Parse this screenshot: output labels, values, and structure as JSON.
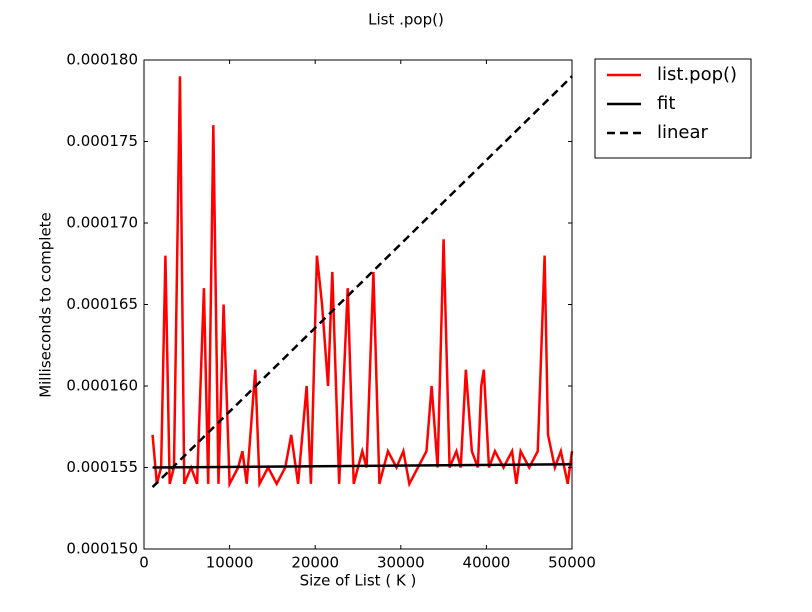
{
  "chart_data": {
    "type": "line",
    "title": "List .pop()",
    "xlabel": "Size of List ( K )",
    "ylabel": "Milliseconds to complete",
    "xlim": [
      0,
      50000
    ],
    "ylim": [
      0.00015,
      0.00018
    ],
    "xticks": [
      0,
      10000,
      20000,
      30000,
      40000,
      50000
    ],
    "yticks": [
      {
        "value": 0.00015,
        "label": "0.000150"
      },
      {
        "value": 0.000155,
        "label": "0.000155"
      },
      {
        "value": 0.00016,
        "label": "0.000160"
      },
      {
        "value": 0.000165,
        "label": "0.000165"
      },
      {
        "value": 0.00017,
        "label": "0.000170"
      },
      {
        "value": 0.000175,
        "label": "0.000175"
      },
      {
        "value": 0.00018,
        "label": "0.000180"
      }
    ],
    "grid": false,
    "legend": "outside upper right",
    "series": [
      {
        "name": "list.pop()",
        "color": "#ff0000",
        "linestyle": "solid",
        "x": [
          1000,
          1500,
          2000,
          2500,
          3000,
          3500,
          4200,
          4700,
          5500,
          6200,
          7000,
          7500,
          8100,
          8700,
          9300,
          10000,
          11000,
          11500,
          12000,
          13000,
          13500,
          14500,
          15500,
          16500,
          17200,
          18000,
          19000,
          19500,
          20200,
          20800,
          21500,
          22000,
          22800,
          23800,
          24500,
          25500,
          26000,
          26800,
          27500,
          28500,
          29500,
          30300,
          31000,
          32000,
          33000,
          33600,
          34300,
          35000,
          35700,
          36500,
          37000,
          37600,
          38300,
          39000,
          39400,
          39700,
          40300,
          41000,
          42000,
          43000,
          43500,
          44000,
          45000,
          46000,
          46800,
          47200,
          48000,
          48700,
          49500,
          50000
        ],
        "values": [
          0.000157,
          0.000154,
          0.000155,
          0.000168,
          0.000154,
          0.000155,
          0.000179,
          0.000154,
          0.000155,
          0.000154,
          0.000166,
          0.000154,
          0.000176,
          0.000154,
          0.000165,
          0.000154,
          0.000155,
          0.000156,
          0.000154,
          0.000161,
          0.000154,
          0.000155,
          0.000154,
          0.000155,
          0.000157,
          0.000154,
          0.00016,
          0.000154,
          0.000168,
          0.000165,
          0.00016,
          0.000167,
          0.000154,
          0.000166,
          0.000154,
          0.000156,
          0.000155,
          0.000167,
          0.000154,
          0.000156,
          0.000155,
          0.000156,
          0.000154,
          0.000155,
          0.000156,
          0.00016,
          0.000155,
          0.000169,
          0.000155,
          0.000156,
          0.000155,
          0.000161,
          0.000156,
          0.000155,
          0.00016,
          0.000161,
          0.000155,
          0.000156,
          0.000155,
          0.000156,
          0.000154,
          0.000156,
          0.000155,
          0.000156,
          0.000168,
          0.000157,
          0.000155,
          0.000156,
          0.000154,
          0.000156
        ]
      },
      {
        "name": "fit",
        "color": "#000000",
        "linestyle": "solid",
        "x": [
          1000,
          50000
        ],
        "values": [
          0.000155,
          0.0001552
        ]
      },
      {
        "name": "linear",
        "color": "#000000",
        "linestyle": "dashed",
        "x": [
          1000,
          50000
        ],
        "values": [
          0.0001538,
          0.000179
        ]
      }
    ]
  }
}
